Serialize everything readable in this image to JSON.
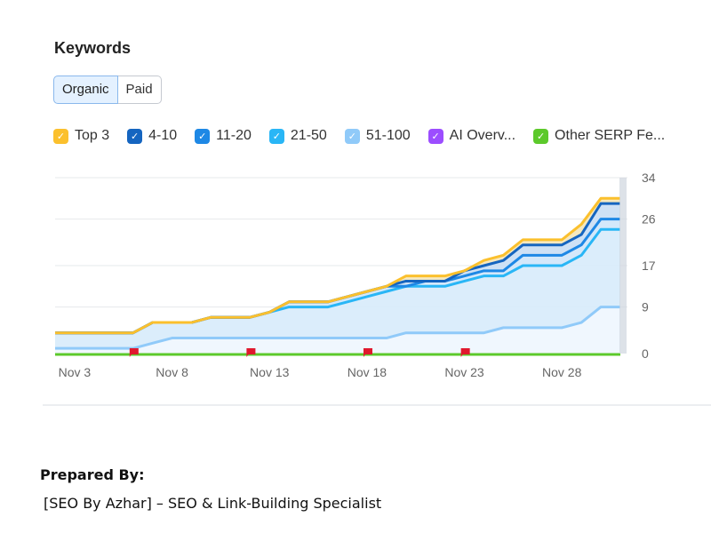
{
  "header": {
    "title": "Keywords"
  },
  "toggle": {
    "organic": "Organic",
    "paid": "Paid",
    "selected": "Organic"
  },
  "legend": [
    {
      "label": "Top 3",
      "color": "#fbc02d"
    },
    {
      "label": "4-10",
      "color": "#1565c0"
    },
    {
      "label": "11-20",
      "color": "#1e88e5"
    },
    {
      "label": "21-50",
      "color": "#29b6f6"
    },
    {
      "label": "51-100",
      "color": "#90caf9"
    },
    {
      "label": "AI Overv...",
      "color": "#9c4dff"
    },
    {
      "label": "Other SERP Fe...",
      "color": "#5cc92b"
    }
  ],
  "chart_data": {
    "type": "area",
    "stacked": true,
    "x": [
      "Nov 2",
      "Nov 3",
      "Nov 4",
      "Nov 5",
      "Nov 6",
      "Nov 7",
      "Nov 8",
      "Nov 9",
      "Nov 10",
      "Nov 11",
      "Nov 12",
      "Nov 13",
      "Nov 14",
      "Nov 15",
      "Nov 16",
      "Nov 17",
      "Nov 18",
      "Nov 19",
      "Nov 20",
      "Nov 21",
      "Nov 22",
      "Nov 23",
      "Nov 24",
      "Nov 25",
      "Nov 26",
      "Nov 27",
      "Nov 28",
      "Nov 29",
      "Nov 30",
      "Dec 1"
    ],
    "x_tick_labels": [
      "Nov 3",
      "Nov 8",
      "Nov 13",
      "Nov 18",
      "Nov 23",
      "Nov 28"
    ],
    "y_tick_labels": [
      "34",
      "26",
      "17",
      "9",
      "0"
    ],
    "ylim": [
      0,
      34
    ],
    "y_axis_side": "right",
    "grid": true,
    "series": [
      {
        "name": "51-100",
        "color": "#90caf9",
        "values": [
          1,
          1,
          1,
          1,
          1,
          2,
          3,
          3,
          3,
          3,
          3,
          3,
          3,
          3,
          3,
          3,
          3,
          3,
          4,
          4,
          4,
          4,
          4,
          5,
          5,
          5,
          5,
          6,
          9,
          9
        ]
      },
      {
        "name": "21-50",
        "color": "#29b6f6",
        "values": [
          3,
          3,
          3,
          3,
          3,
          4,
          3,
          3,
          4,
          4,
          4,
          5,
          6,
          6,
          6,
          7,
          8,
          9,
          9,
          9,
          9,
          10,
          11,
          10,
          12,
          12,
          12,
          13,
          15,
          15
        ]
      },
      {
        "name": "11-20",
        "color": "#1e88e5",
        "values": [
          0,
          0,
          0,
          0,
          0,
          0,
          0,
          0,
          0,
          0,
          0,
          0,
          1,
          1,
          1,
          1,
          1,
          1,
          0,
          1,
          1,
          1,
          1,
          1,
          2,
          2,
          2,
          2,
          2,
          2
        ]
      },
      {
        "name": "4-10",
        "color": "#1565c0",
        "values": [
          0,
          0,
          0,
          0,
          0,
          0,
          0,
          0,
          0,
          0,
          0,
          0,
          0,
          0,
          0,
          0,
          0,
          0,
          1,
          0,
          0,
          1,
          1,
          2,
          2,
          2,
          2,
          2,
          3,
          3
        ]
      },
      {
        "name": "Top 3",
        "color": "#fbc02d",
        "values": [
          0,
          0,
          0,
          0,
          0,
          0,
          0,
          0,
          0,
          0,
          0,
          0,
          0,
          0,
          0,
          0,
          0,
          0,
          1,
          1,
          1,
          0,
          1,
          1,
          1,
          1,
          1,
          2,
          1,
          1
        ]
      },
      {
        "name": "AI Overv...",
        "color": "#9c4dff",
        "values": [
          0,
          0,
          0,
          0,
          0,
          0,
          0,
          0,
          0,
          0,
          0,
          0,
          0,
          0,
          0,
          0,
          0,
          0,
          0,
          0,
          0,
          0,
          0,
          0,
          0,
          0,
          0,
          0,
          0,
          0
        ]
      },
      {
        "name": "Other SERP Fe...",
        "color": "#5cc92b",
        "values": [
          0,
          0,
          0,
          0,
          0,
          0,
          0,
          0,
          0,
          0,
          0,
          0,
          0,
          0,
          0,
          0,
          0,
          0,
          0,
          0,
          0,
          0,
          0,
          0,
          0,
          0,
          0,
          0,
          0,
          0
        ]
      }
    ],
    "annotation_flags": [
      "Nov 6",
      "Nov 12",
      "Nov 18",
      "Nov 23"
    ],
    "flag_color": "#e0182d"
  },
  "footer": {
    "prepared_by": "Prepared By:",
    "specialist": "[SEO By Azhar] – SEO & Link-Building Specialist"
  }
}
